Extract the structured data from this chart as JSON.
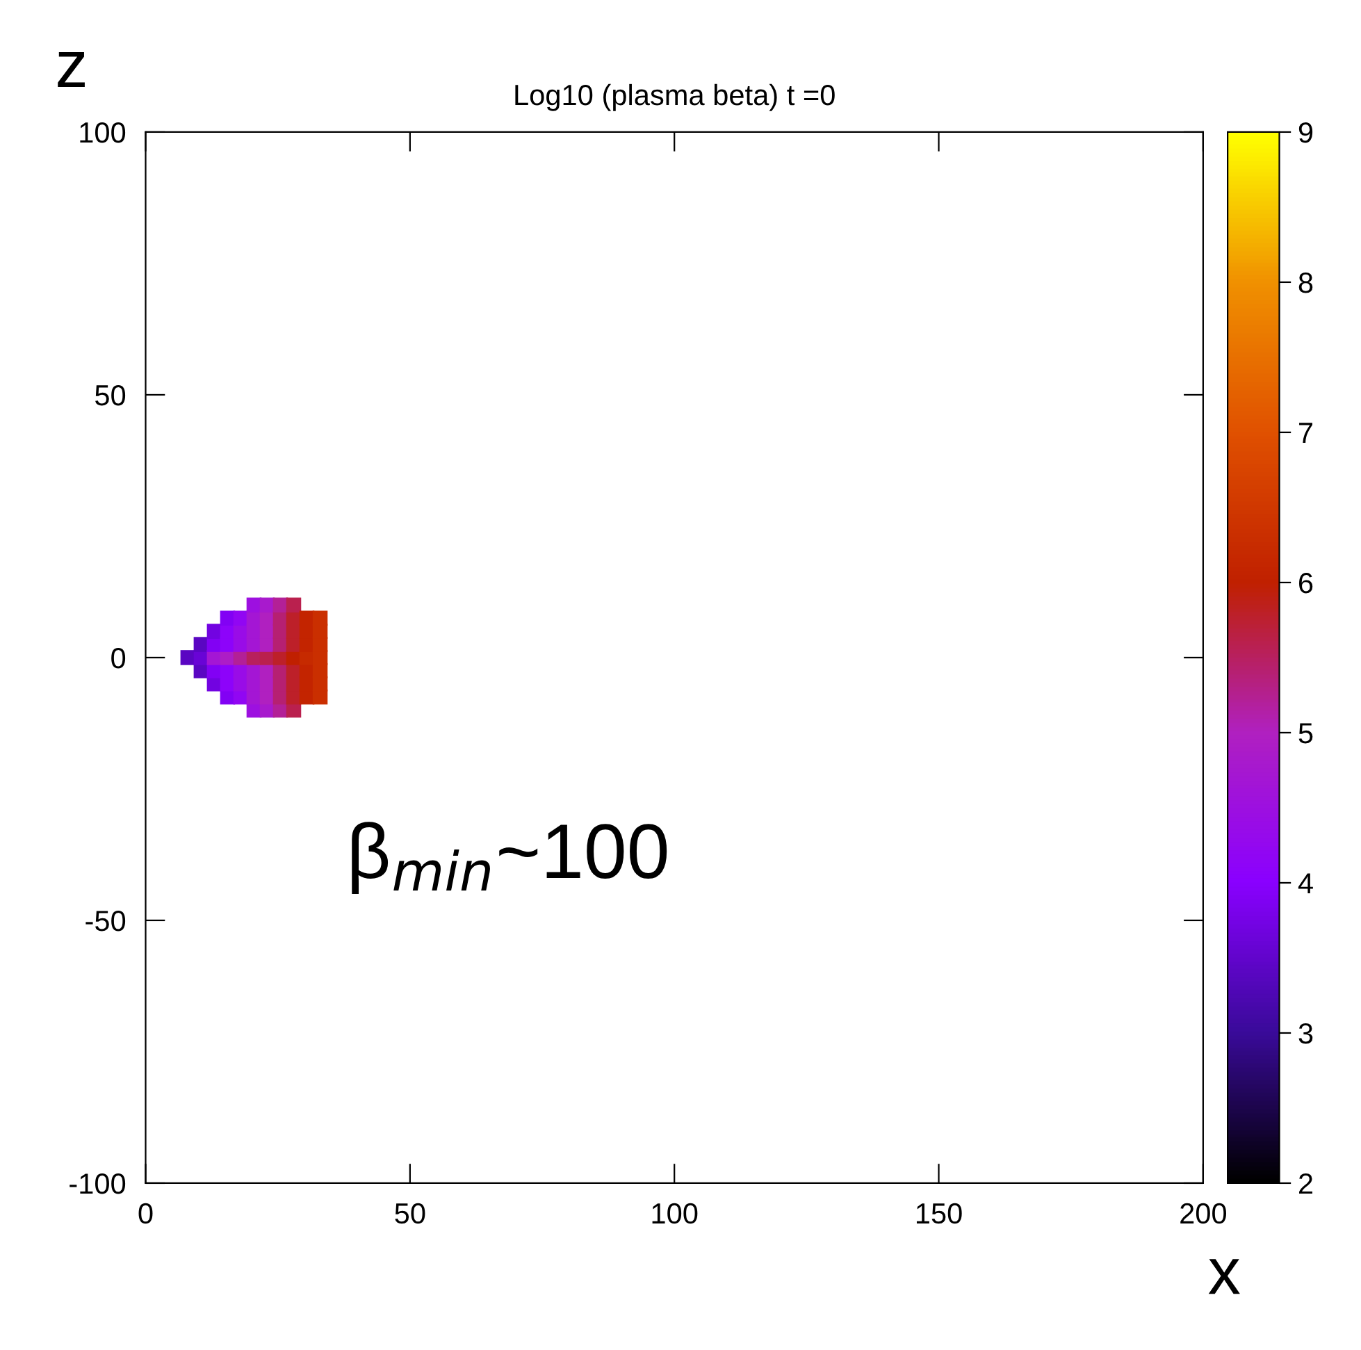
{
  "chart_data": {
    "type": "scatter",
    "title": "Log10 (plasma beta) t =0",
    "xlabel": "x",
    "ylabel": "z",
    "marker": "square",
    "x": [
      8,
      10.5,
      10.5,
      10.5,
      13,
      13,
      13,
      13,
      13,
      15.5,
      15.5,
      15.5,
      15.5,
      15.5,
      15.5,
      15.5,
      18,
      18,
      18,
      18,
      18,
      18,
      18,
      20.5,
      20.5,
      20.5,
      20.5,
      20.5,
      20.5,
      20.5,
      20.5,
      20.5,
      23,
      23,
      23,
      23,
      23,
      23,
      23,
      23,
      23,
      25.5,
      25.5,
      25.5,
      25.5,
      25.5,
      25.5,
      25.5,
      25.5,
      25.5,
      28,
      28,
      28,
      28,
      28,
      28,
      28,
      28,
      28,
      30.5,
      30.5,
      30.5,
      30.5,
      30.5,
      30.5,
      30.5,
      33,
      33,
      33,
      33,
      33,
      33,
      33
    ],
    "values": [
      0,
      -2.5,
      0,
      2.5,
      -5,
      -2.5,
      0,
      2.5,
      5,
      -7.5,
      -5,
      -2.5,
      0,
      2.5,
      5,
      7.5,
      -7.5,
      -5,
      -2.5,
      0,
      2.5,
      5,
      7.5,
      -10,
      -7.5,
      -5,
      -2.5,
      0,
      2.5,
      5,
      7.5,
      10,
      -10,
      -7.5,
      -5,
      -2.5,
      0,
      2.5,
      5,
      7.5,
      10,
      -10,
      -7.5,
      -5,
      -2.5,
      0,
      2.5,
      5,
      7.5,
      10,
      -10,
      -7.5,
      -5,
      -2.5,
      0,
      2.5,
      5,
      7.5,
      10,
      -7.5,
      -5,
      -2.5,
      0,
      2.5,
      5,
      7.5,
      -7.5,
      -5,
      -2.5,
      0,
      2.5,
      5,
      7.5
    ],
    "cvalues": [
      3.4,
      3.4,
      3.6,
      3.4,
      3.7,
      3.9,
      4.7,
      3.9,
      3.7,
      3.9,
      4.1,
      4.1,
      4.9,
      4.1,
      4.1,
      3.9,
      4.2,
      4.4,
      4.4,
      5.2,
      4.4,
      4.4,
      4.2,
      4.5,
      4.7,
      4.7,
      4.7,
      5.5,
      4.7,
      4.7,
      4.7,
      4.5,
      4.8,
      5.0,
      5.0,
      5.0,
      5.6,
      5.0,
      5.0,
      5.0,
      4.8,
      5.2,
      5.4,
      5.4,
      5.4,
      5.8,
      5.4,
      5.4,
      5.4,
      5.2,
      5.6,
      5.8,
      5.8,
      5.8,
      6.0,
      5.8,
      5.8,
      5.8,
      5.6,
      6.1,
      6.1,
      6.1,
      6.2,
      6.1,
      6.1,
      6.1,
      6.3,
      6.3,
      6.3,
      6.3,
      6.3,
      6.3,
      6.3
    ],
    "xlim": [
      0,
      200
    ],
    "xticks": [
      0,
      50,
      100,
      150,
      200
    ],
    "ylim": [
      -100,
      100
    ],
    "yticks": [
      -100,
      -50,
      0,
      50,
      100
    ],
    "clim": [
      2,
      9
    ],
    "cticks": [
      2,
      3,
      4,
      5,
      6,
      7,
      8,
      9
    ],
    "grid": false,
    "annotations": [
      "β$_{min}$~100"
    ]
  }
}
